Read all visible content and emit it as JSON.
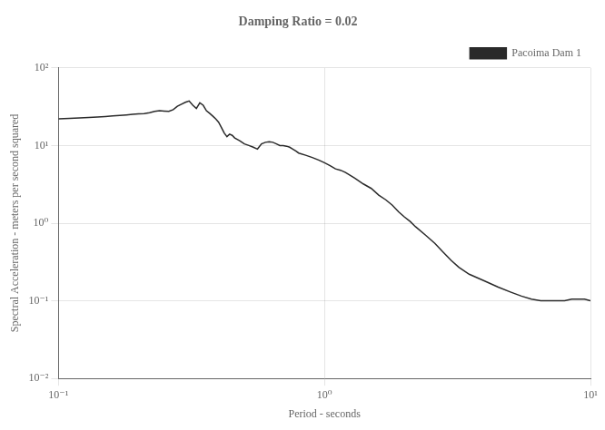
{
  "chart_data": {
    "type": "line",
    "title": "Damping Ratio = 0.02",
    "xlabel": "Period - seconds",
    "ylabel": "Spectral Acceleration - meters per second squared",
    "log": true,
    "grid": true,
    "legend": "upper right",
    "xlim": [
      0.1,
      10.0
    ],
    "ylim": [
      0.01,
      100.0
    ],
    "xticks": [
      {
        "value": 0.1,
        "label": "10⁻¹"
      },
      {
        "value": 1,
        "label": "10⁰"
      },
      {
        "value": 10,
        "label": "10¹"
      }
    ],
    "yticks": [
      {
        "value": 0.01,
        "label": "10⁻²"
      },
      {
        "value": 0.1,
        "label": "10⁻¹"
      },
      {
        "value": 1,
        "label": "10⁰"
      },
      {
        "value": 10,
        "label": "10¹"
      },
      {
        "value": 100,
        "label": "10²"
      }
    ],
    "x": [
      0.1,
      0.11,
      0.12,
      0.13,
      0.14,
      0.15,
      0.16,
      0.17,
      0.18,
      0.19,
      0.2,
      0.21,
      0.22,
      0.23,
      0.24,
      0.25,
      0.26,
      0.27,
      0.28,
      0.29,
      0.3,
      0.31,
      0.32,
      0.33,
      0.34,
      0.35,
      0.36,
      0.37,
      0.38,
      0.39,
      0.4,
      0.41,
      0.42,
      0.43,
      0.44,
      0.45,
      0.46,
      0.47,
      0.48,
      0.49,
      0.5,
      0.52,
      0.54,
      0.56,
      0.58,
      0.6,
      0.62,
      0.64,
      0.66,
      0.68,
      0.7,
      0.72,
      0.74,
      0.76,
      0.78,
      0.8,
      0.85,
      0.9,
      0.95,
      1.0,
      1.05,
      1.1,
      1.15,
      1.2,
      1.3,
      1.4,
      1.5,
      1.6,
      1.7,
      1.8,
      1.9,
      2.0,
      2.1,
      2.2,
      2.4,
      2.6,
      2.8,
      3.0,
      3.2,
      3.5,
      4.0,
      4.5,
      5.0,
      5.5,
      6.0,
      6.5,
      7.0,
      7.5,
      8.0,
      8.5,
      9.0,
      9.5,
      10.0
    ],
    "series": [
      {
        "name": "Pacoima Dam 1",
        "color": "#2a2a2a",
        "values": [
          22.0,
          22.3,
          22.6,
          23.0,
          23.3,
          23.6,
          24.0,
          24.4,
          24.8,
          25.2,
          25.5,
          25.8,
          26.5,
          27.5,
          28.0,
          27.8,
          27.5,
          29.0,
          32.0,
          34.0,
          36.0,
          37.5,
          33.0,
          30.0,
          35.5,
          33.0,
          28.0,
          26.0,
          24.0,
          22.0,
          20.0,
          17.0,
          14.5,
          13.0,
          14.0,
          13.5,
          12.5,
          12.0,
          11.5,
          11.0,
          10.5,
          10.0,
          9.5,
          9.0,
          10.5,
          11.0,
          11.2,
          11.0,
          10.5,
          10.0,
          10.0,
          9.8,
          9.5,
          9.0,
          8.5,
          8.0,
          7.5,
          7.0,
          6.5,
          6.0,
          5.5,
          5.0,
          4.8,
          4.5,
          3.8,
          3.2,
          2.8,
          2.3,
          2.0,
          1.7,
          1.4,
          1.2,
          1.05,
          0.9,
          0.7,
          0.55,
          0.42,
          0.33,
          0.27,
          0.22,
          0.18,
          0.15,
          0.13,
          0.115,
          0.105,
          0.1,
          0.1,
          0.1,
          0.1,
          0.105,
          0.105,
          0.105,
          0.1
        ]
      }
    ]
  }
}
